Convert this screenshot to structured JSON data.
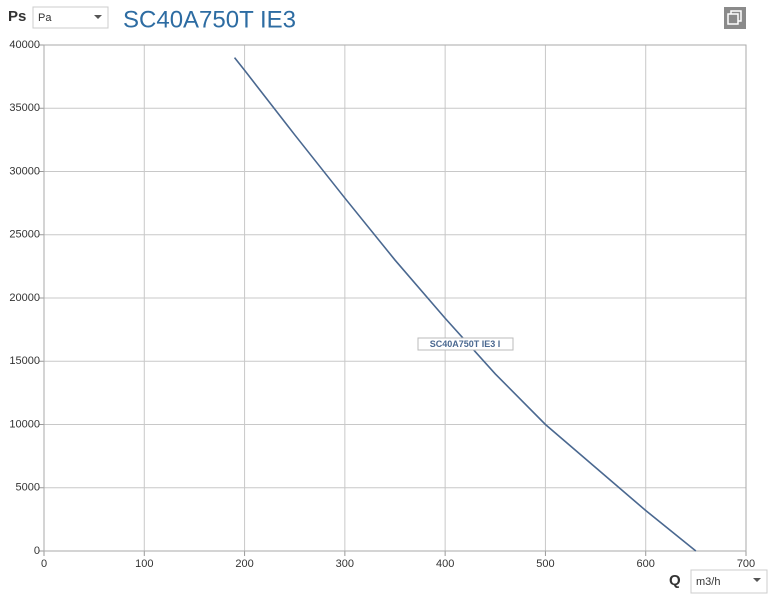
{
  "chart_data": {
    "type": "line",
    "title": "SC40A750T IE3",
    "y_label": "Ps",
    "y_unit": "Pa",
    "x_label": "Q",
    "x_unit": "m3/h",
    "x": [
      190,
      200,
      250,
      300,
      350,
      400,
      450,
      500,
      550,
      600,
      650
    ],
    "series": [
      {
        "name": "SC40A750T IE3 I",
        "color": "#4a6890",
        "values": [
          39000,
          38000,
          32900,
          27900,
          23000,
          18400,
          14000,
          10000,
          6600,
          3200,
          0
        ]
      }
    ],
    "xlim": [
      0,
      700
    ],
    "xticks": [
      0,
      100,
      200,
      300,
      400,
      500,
      600,
      700
    ],
    "ylim": [
      0,
      40000
    ],
    "yticks": [
      0,
      5000,
      10000,
      15000,
      20000,
      25000,
      30000,
      35000,
      40000
    ],
    "grid": true
  }
}
